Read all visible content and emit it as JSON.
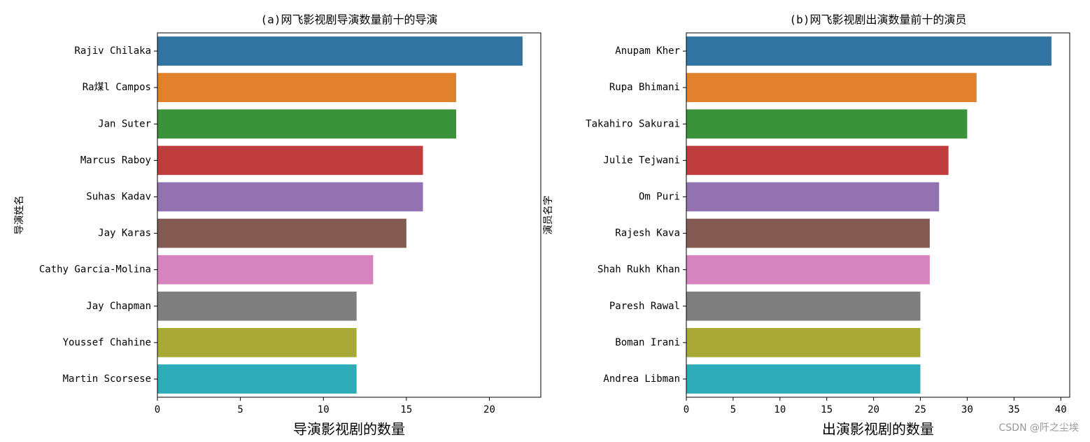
{
  "chart_data": [
    {
      "type": "barh",
      "title": "(a)网飞影视剧导演数量前十的导演",
      "xlabel": "导演影视剧的数量",
      "ylabel": "导演姓名",
      "categories": [
        "Rajiv Chilaka",
        "Ra煤l Campos",
        "Jan Suter",
        "Marcus Raboy",
        "Suhas Kadav",
        "Jay Karas",
        "Cathy Garcia-Molina",
        "Jay Chapman",
        "Youssef Chahine",
        "Martin Scorsese"
      ],
      "values": [
        22,
        18,
        18,
        16,
        16,
        15,
        13,
        12,
        12,
        12
      ],
      "colors": [
        "#3274a1",
        "#e1812c",
        "#3a923a",
        "#c03d3e",
        "#9372b2",
        "#845b53",
        "#d684bd",
        "#7f7f7f",
        "#a9aa35",
        "#2eabb8"
      ],
      "xlim": [
        0,
        23.1
      ],
      "xticks": [
        0,
        5,
        10,
        15,
        20
      ]
    },
    {
      "type": "barh",
      "title": "(b)网飞影视剧出演数量前十的演员",
      "xlabel": "出演影视剧的数量",
      "ylabel": "演员名字",
      "categories": [
        "Anupam Kher",
        "Rupa Bhimani",
        "Takahiro Sakurai",
        "Julie Tejwani",
        "Om Puri",
        "Rajesh Kava",
        "Shah Rukh Khan",
        "Paresh Rawal",
        "Boman Irani",
        "Andrea Libman"
      ],
      "values": [
        39,
        31,
        30,
        28,
        27,
        26,
        26,
        25,
        25,
        25
      ],
      "colors": [
        "#3274a1",
        "#e1812c",
        "#3a923a",
        "#c03d3e",
        "#9372b2",
        "#845b53",
        "#d684bd",
        "#7f7f7f",
        "#a9aa35",
        "#2eabb8"
      ],
      "xlim": [
        0,
        40.95
      ],
      "xticks": [
        0,
        5,
        10,
        15,
        20,
        25,
        30,
        35,
        40
      ]
    }
  ],
  "watermark": "CSDN @阡之尘埃"
}
